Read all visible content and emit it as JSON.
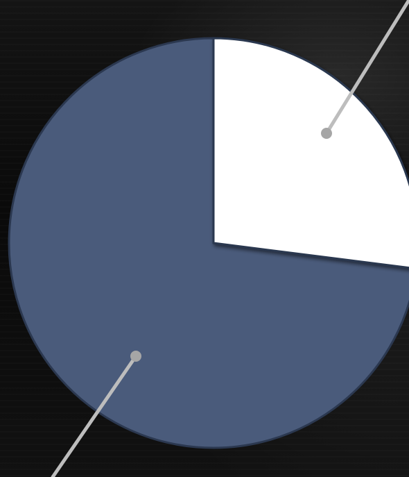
{
  "chart_data": {
    "type": "pie",
    "title": "",
    "slices": [
      {
        "value": 27,
        "color": "#ffffff"
      },
      {
        "value": 73,
        "color": "#4a5b7b"
      }
    ],
    "start_angle_deg": 0,
    "direction": "clockwise",
    "slice_edge_color": "#2b3850",
    "leader_line_color": "#bdbdbd",
    "legend": "none"
  }
}
